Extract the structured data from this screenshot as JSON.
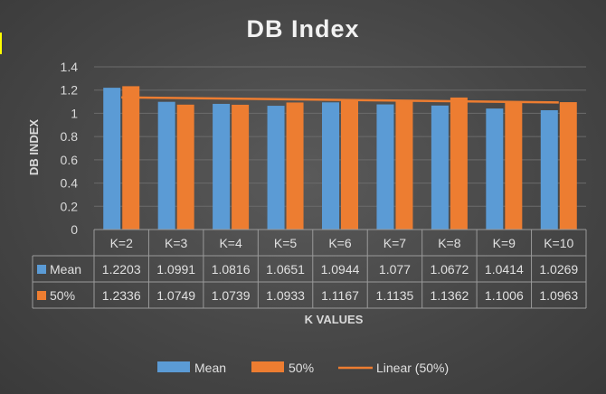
{
  "chart_data": {
    "type": "bar",
    "title": "DB Index",
    "xlabel": "K VALUES",
    "ylabel": "DB INDEX",
    "ylim": [
      0,
      1.4
    ],
    "yticks": [
      "0",
      "0.2",
      "0.4",
      "0.6",
      "0.8",
      "1",
      "1.2",
      "1.4"
    ],
    "ytick_values": [
      0,
      0.2,
      0.4,
      0.6,
      0.8,
      1.0,
      1.2,
      1.4
    ],
    "categories": [
      "K=2",
      "K=3",
      "K=4",
      "K=5",
      "K=6",
      "K=7",
      "K=8",
      "K=9",
      "K=10"
    ],
    "series": [
      {
        "name": "Mean",
        "color": "#5b9bd5",
        "values": [
          1.2203,
          1.0991,
          1.0816,
          1.0651,
          1.0944,
          1.077,
          1.0672,
          1.0414,
          1.0269
        ],
        "labels": [
          "1.2203",
          "1.0991",
          "1.0816",
          "1.0651",
          "1.0944",
          "1.077",
          "1.0672",
          "1.0414",
          "1.0269"
        ]
      },
      {
        "name": "50%",
        "color": "#ed7d31",
        "values": [
          1.2336,
          1.0749,
          1.0739,
          1.0933,
          1.1167,
          1.1135,
          1.1362,
          1.1006,
          1.0963
        ],
        "labels": [
          "1.2336",
          "1.0749",
          "1.0739",
          "1.0933",
          "1.1167",
          "1.1135",
          "1.1362",
          "1.1006",
          "1.0963"
        ]
      }
    ],
    "trendline": {
      "name": "Linear (50%)",
      "series": "50%",
      "type": "linear",
      "color": "#ed7d31"
    },
    "data_table": true,
    "gridlines": true,
    "legend": "bottom"
  }
}
